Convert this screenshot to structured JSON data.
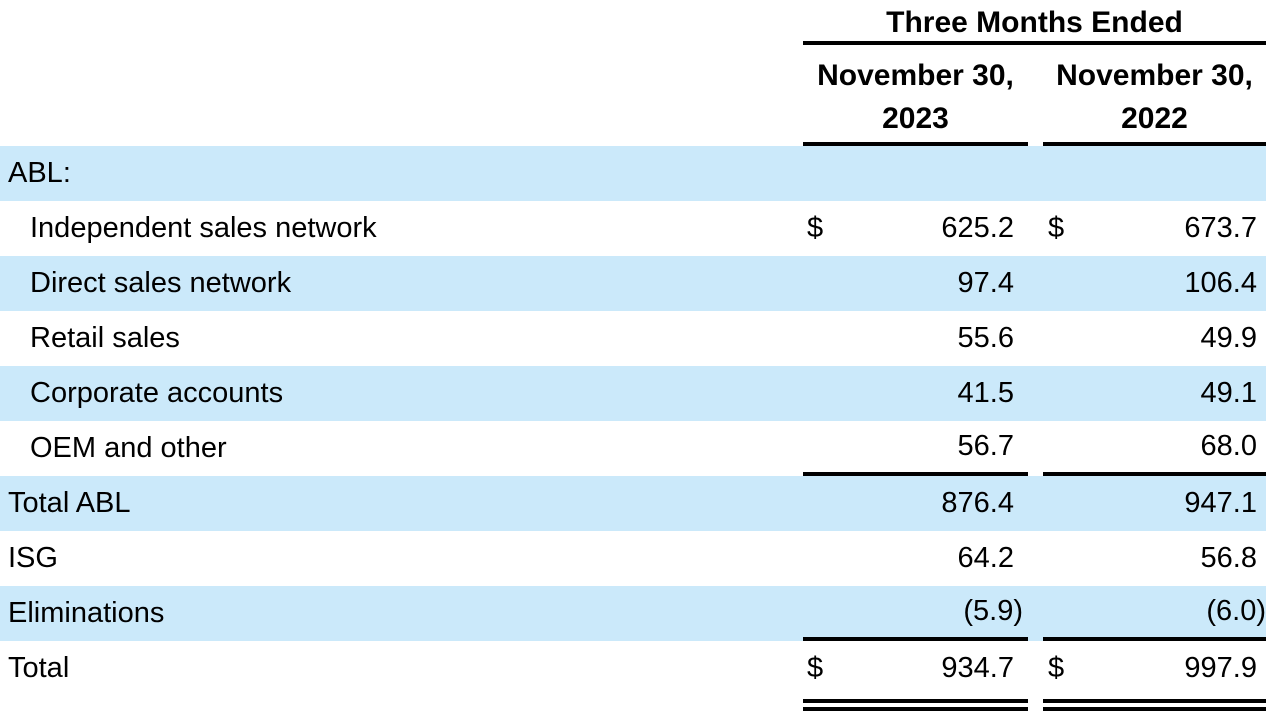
{
  "theme": {
    "background": "#ffffff",
    "shade": "#cbe9fa",
    "text": "#000000",
    "line": "#000000"
  },
  "header": {
    "title": "Three Months Ended",
    "columns": [
      {
        "line1": "November 30,",
        "line2": "2023"
      },
      {
        "line1": "November 30,",
        "line2": "2022"
      }
    ]
  },
  "rows": [
    {
      "label": "ABL:",
      "v1": "",
      "v2": ""
    },
    {
      "label": "Independent sales network",
      "dollar1": "$",
      "v1": "625.2",
      "dollar2": "$",
      "v2": "673.7"
    },
    {
      "label": "Direct sales network",
      "v1": "97.4",
      "v2": "106.4"
    },
    {
      "label": "Retail sales",
      "v1": "55.6",
      "v2": "49.9"
    },
    {
      "label": "Corporate accounts",
      "v1": "41.5",
      "v2": "49.1"
    },
    {
      "label": "OEM and other",
      "v1": "56.7",
      "v2": "68.0"
    },
    {
      "label": "Total ABL",
      "v1": "876.4",
      "v2": "947.1"
    },
    {
      "label": "ISG",
      "v1": "64.2",
      "v2": "56.8"
    },
    {
      "label": "Eliminations",
      "v1": "(5.9)",
      "v2": "(6.0)"
    },
    {
      "label": "Total",
      "dollar1": "$",
      "v1": "934.7",
      "dollar2": "$",
      "v2": "997.9"
    }
  ]
}
